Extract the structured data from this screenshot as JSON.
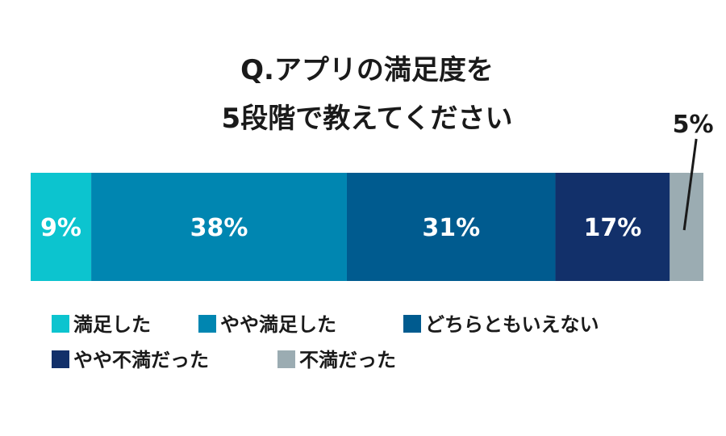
{
  "chart_data": {
    "type": "bar",
    "orientation": "horizontal-stacked-100",
    "title_lines": [
      "Q.アプリの満足度を",
      "5段階で教えてください"
    ],
    "categories": [
      "満足した",
      "やや満足した",
      "どちらともいえない",
      "やや不満だった",
      "不満だった"
    ],
    "values": [
      9,
      38,
      31,
      17,
      5
    ],
    "value_labels": [
      "9%",
      "38%",
      "31%",
      "17%",
      "5%"
    ],
    "unit": "%",
    "colors": [
      "#0cc4cf",
      "#0086b1",
      "#005b8f",
      "#12306a",
      "#9bacb2"
    ],
    "label_positions": [
      "inside",
      "inside",
      "inside",
      "inside",
      "outside-callout"
    ],
    "xlim": [
      0,
      100
    ],
    "grid": false,
    "legend_placement": "bottom-left",
    "legend_rows": [
      [
        0,
        1,
        2
      ],
      [
        3,
        4
      ]
    ]
  }
}
